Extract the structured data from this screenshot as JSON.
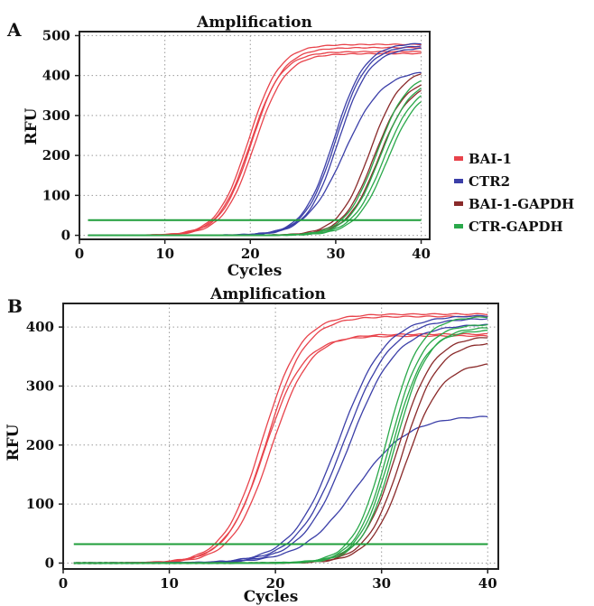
{
  "colors": {
    "BAI-1": "#e8434b",
    "CTR2": "#3b3fa8",
    "BAI-1-GAPDH": "#8a2a2a",
    "CTR-GAPDH": "#2aa84a",
    "threshold": "#1f9e3a"
  },
  "legend": {
    "placement": "right of panel A",
    "entries": [
      "BAI-1",
      "CTR2",
      "BAI-1-GAPDH",
      "CTR-GAPDH"
    ]
  },
  "chart_data": [
    {
      "panel": "A",
      "type": "line",
      "title": "Amplification",
      "xlabel": "Cycles",
      "ylabel": "RFU",
      "xlim": [
        0,
        41
      ],
      "ylim": [
        -10,
        510
      ],
      "xticks": [
        0,
        10,
        20,
        30,
        40
      ],
      "yticks": [
        0,
        100,
        200,
        300,
        400,
        500
      ],
      "grid": true,
      "threshold": 38,
      "series": [
        {
          "name": "BAI-1",
          "curves": [
            {
              "ct": 19.8,
              "max": 478,
              "k": 0.55
            },
            {
              "ct": 20.2,
              "max": 470,
              "k": 0.55
            },
            {
              "ct": 20.5,
              "max": 455,
              "k": 0.55
            },
            {
              "ct": 20.0,
              "max": 460,
              "k": 0.55
            }
          ]
        },
        {
          "name": "CTR2",
          "curves": [
            {
              "ct": 29.8,
              "max": 482,
              "k": 0.55
            },
            {
              "ct": 30.0,
              "max": 476,
              "k": 0.55
            },
            {
              "ct": 30.3,
              "max": 470,
              "k": 0.55
            },
            {
              "ct": 31.0,
              "max": 415,
              "k": 0.45
            }
          ]
        },
        {
          "name": "BAI-1-GAPDH",
          "curves": [
            {
              "ct": 34.0,
              "max": 420,
              "k": 0.55
            },
            {
              "ct": 34.5,
              "max": 395,
              "k": 0.55
            },
            {
              "ct": 35.0,
              "max": 385,
              "k": 0.55
            }
          ]
        },
        {
          "name": "CTR-GAPDH",
          "curves": [
            {
              "ct": 34.8,
              "max": 410,
              "k": 0.55
            },
            {
              "ct": 35.2,
              "max": 395,
              "k": 0.55
            },
            {
              "ct": 35.6,
              "max": 380,
              "k": 0.55
            },
            {
              "ct": 36.0,
              "max": 372,
              "k": 0.55
            }
          ]
        }
      ]
    },
    {
      "panel": "B",
      "type": "line",
      "title": "Amplification",
      "xlabel": "Cycles",
      "ylabel": "RFU",
      "xlim": [
        0,
        41
      ],
      "ylim": [
        -10,
        440
      ],
      "xticks": [
        0,
        10,
        20,
        30,
        40
      ],
      "yticks": [
        0,
        100,
        200,
        300,
        400
      ],
      "grid": true,
      "threshold": 32,
      "series": [
        {
          "name": "BAI-1",
          "curves": [
            {
              "ct": 18.8,
              "max": 422,
              "k": 0.55
            },
            {
              "ct": 19.2,
              "max": 418,
              "k": 0.55
            },
            {
              "ct": 19.6,
              "max": 388,
              "k": 0.55
            },
            {
              "ct": 19.0,
              "max": 385,
              "k": 0.55
            }
          ]
        },
        {
          "name": "CTR2",
          "curves": [
            {
              "ct": 26.0,
              "max": 420,
              "k": 0.45
            },
            {
              "ct": 26.5,
              "max": 415,
              "k": 0.45
            },
            {
              "ct": 27.0,
              "max": 405,
              "k": 0.45
            },
            {
              "ct": 27.5,
              "max": 250,
              "k": 0.4
            }
          ]
        },
        {
          "name": "BAI-1-GAPDH",
          "curves": [
            {
              "ct": 31.5,
              "max": 385,
              "k": 0.6
            },
            {
              "ct": 32.0,
              "max": 375,
              "k": 0.6
            },
            {
              "ct": 32.3,
              "max": 340,
              "k": 0.6
            }
          ]
        },
        {
          "name": "CTR-GAPDH",
          "curves": [
            {
              "ct": 30.5,
              "max": 418,
              "k": 0.65
            },
            {
              "ct": 30.8,
              "max": 405,
              "k": 0.65
            },
            {
              "ct": 31.0,
              "max": 395,
              "k": 0.65
            },
            {
              "ct": 31.3,
              "max": 400,
              "k": 0.65
            }
          ]
        }
      ]
    }
  ]
}
